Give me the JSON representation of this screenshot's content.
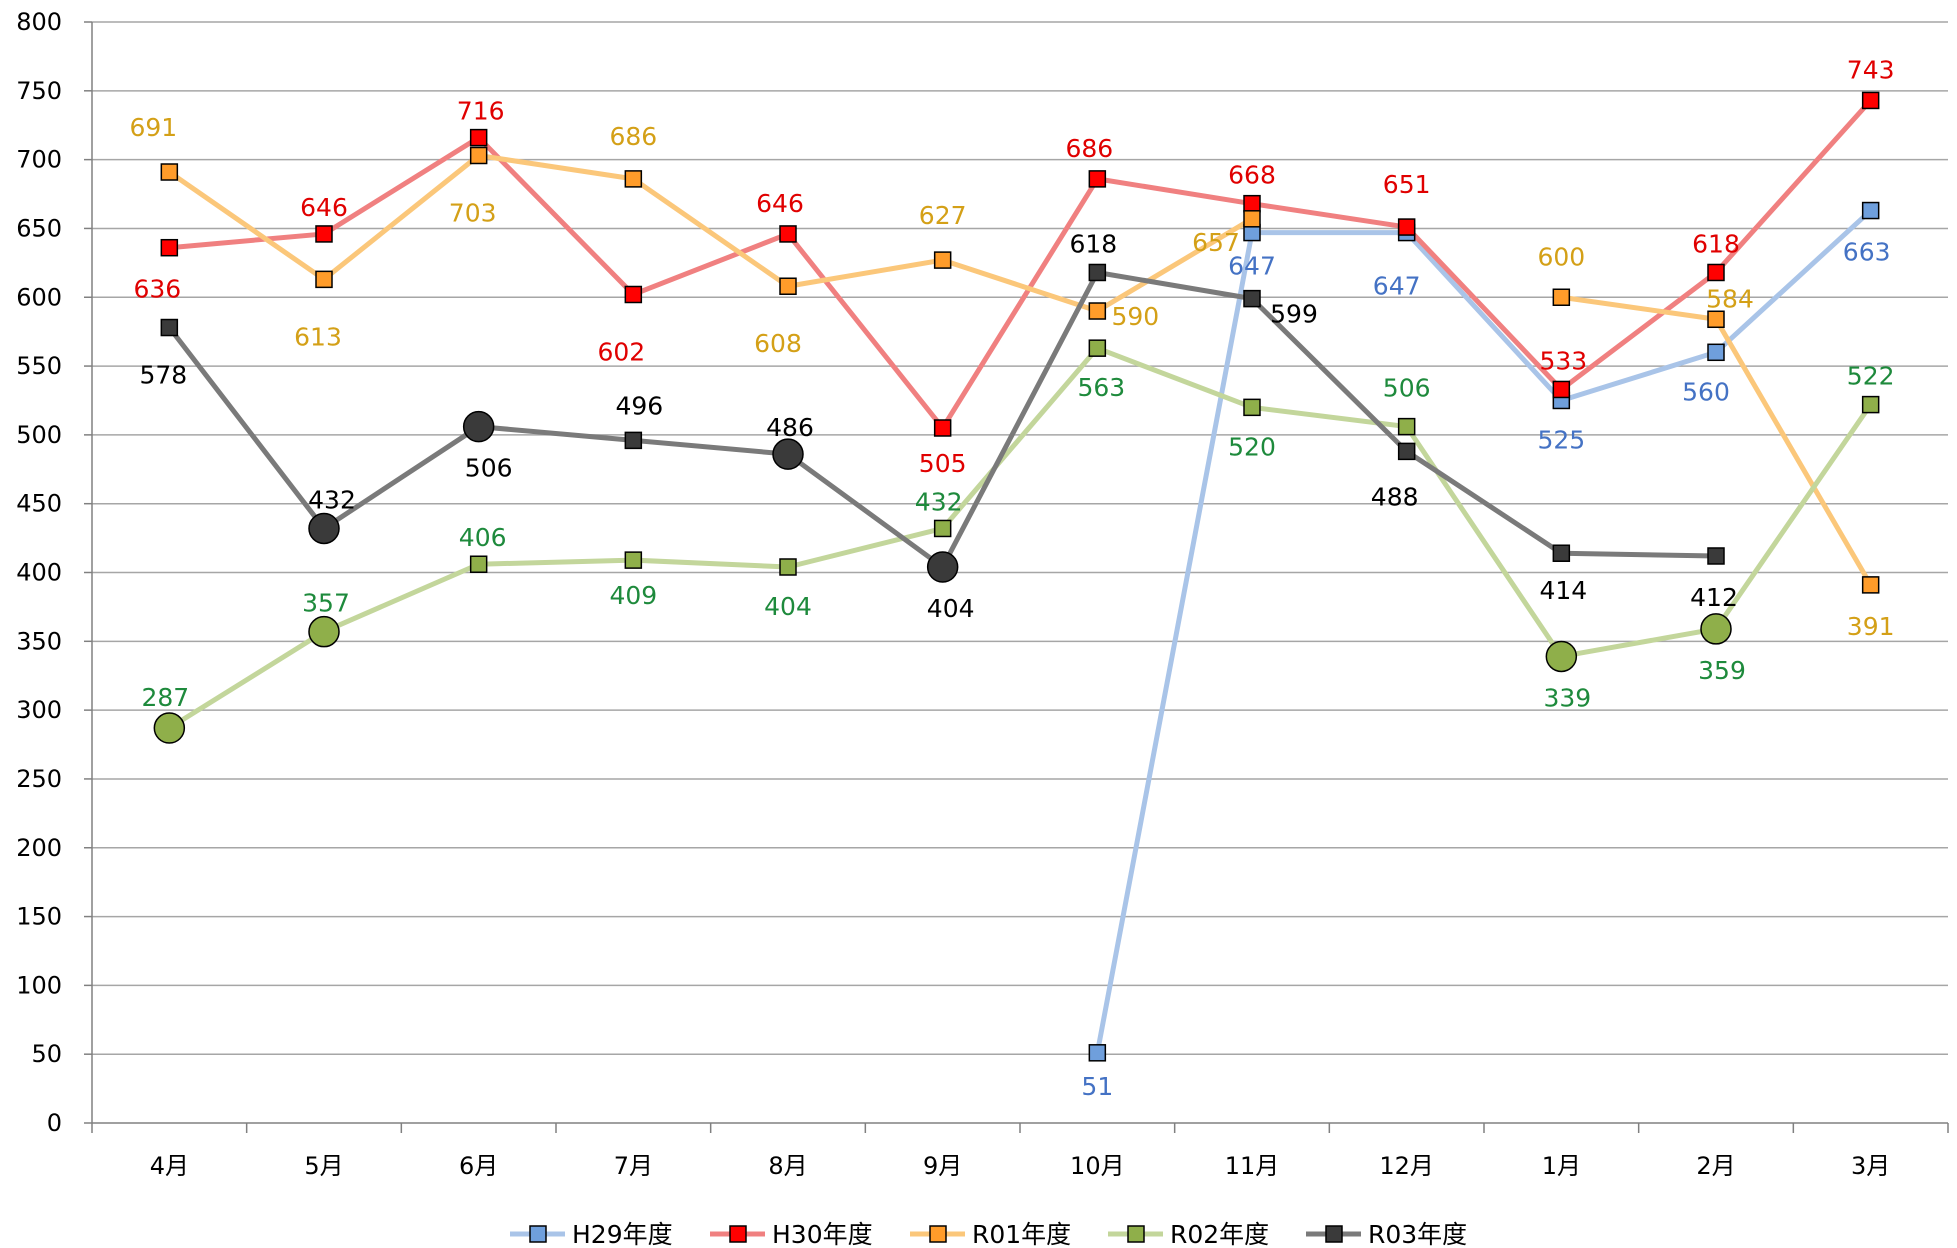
{
  "chart_data": {
    "type": "line",
    "categories": [
      "4月",
      "5月",
      "6月",
      "7月",
      "8月",
      "9月",
      "10月",
      "11月",
      "12月",
      "1月",
      "2月",
      "3月"
    ],
    "ylim": [
      0,
      800
    ],
    "yticks": [
      0,
      50,
      100,
      150,
      200,
      250,
      300,
      350,
      400,
      450,
      500,
      550,
      600,
      650,
      700,
      750,
      800
    ],
    "grid": true,
    "legend_position": "bottom",
    "series": [
      {
        "name": "H29年度",
        "values": [
          null,
          null,
          null,
          null,
          null,
          null,
          51,
          647,
          647,
          525,
          560,
          663
        ],
        "line_color": "#a9c4e8",
        "marker_color": "#6f9fdc",
        "label_color": "#4472c4"
      },
      {
        "name": "H30年度",
        "values": [
          636,
          646,
          716,
          602,
          646,
          505,
          686,
          668,
          651,
          533,
          618,
          743
        ],
        "line_color": "#f08080",
        "marker_color": "#ff0000",
        "label_color": "#e00000"
      },
      {
        "name": "R01年度",
        "values": [
          691,
          613,
          703,
          686,
          608,
          627,
          590,
          657,
          null,
          600,
          584,
          391
        ],
        "line_color": "#fbc77a",
        "marker_color": "#ff9c2a",
        "label_color": "#d4a017"
      },
      {
        "name": "R02年度",
        "values": [
          287,
          357,
          406,
          409,
          404,
          432,
          563,
          520,
          506,
          339,
          359,
          522
        ],
        "line_color": "#c3d69b",
        "marker_color": "#8faf4a",
        "label_color": "#1e8a3c"
      },
      {
        "name": "R03年度",
        "values": [
          578,
          432,
          506,
          496,
          486,
          404,
          618,
          599,
          488,
          414,
          412,
          null
        ],
        "line_color": "#7a7a7a",
        "marker_color": "#3a3a3a",
        "label_color": "#000000"
      }
    ],
    "emphasized_points": {
      "R02年度": [
        0,
        1,
        9,
        10
      ],
      "R03年度": [
        1,
        2,
        4,
        5
      ]
    }
  }
}
